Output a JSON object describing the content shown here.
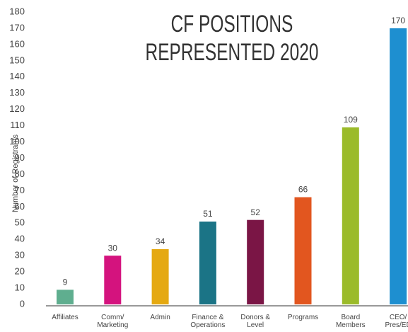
{
  "chart_data": {
    "type": "bar",
    "title": "CF POSITIONS REPRESENTED 2020",
    "y_label": "Number of Registrants",
    "categories": [
      "Affiliates",
      "Comm/ Marketing",
      "Admin",
      "Finance & Operations",
      "Donors & Level",
      "Programs",
      "Board Members",
      "CEO/ Pres/ED"
    ],
    "values": [
      9,
      30,
      34,
      51,
      52,
      66,
      109,
      170
    ],
    "colors": [
      "#5fae8f",
      "#d4137e",
      "#e5a911",
      "#1b7486",
      "#7a1545",
      "#e2561f",
      "#9bbb2a",
      "#1e8fd0"
    ],
    "ylim": [
      0,
      180
    ],
    "yticks": [
      0,
      10,
      20,
      30,
      40,
      50,
      60,
      70,
      80,
      90,
      100,
      110,
      120,
      130,
      140,
      150,
      160,
      170,
      180
    ],
    "grid": false
  }
}
